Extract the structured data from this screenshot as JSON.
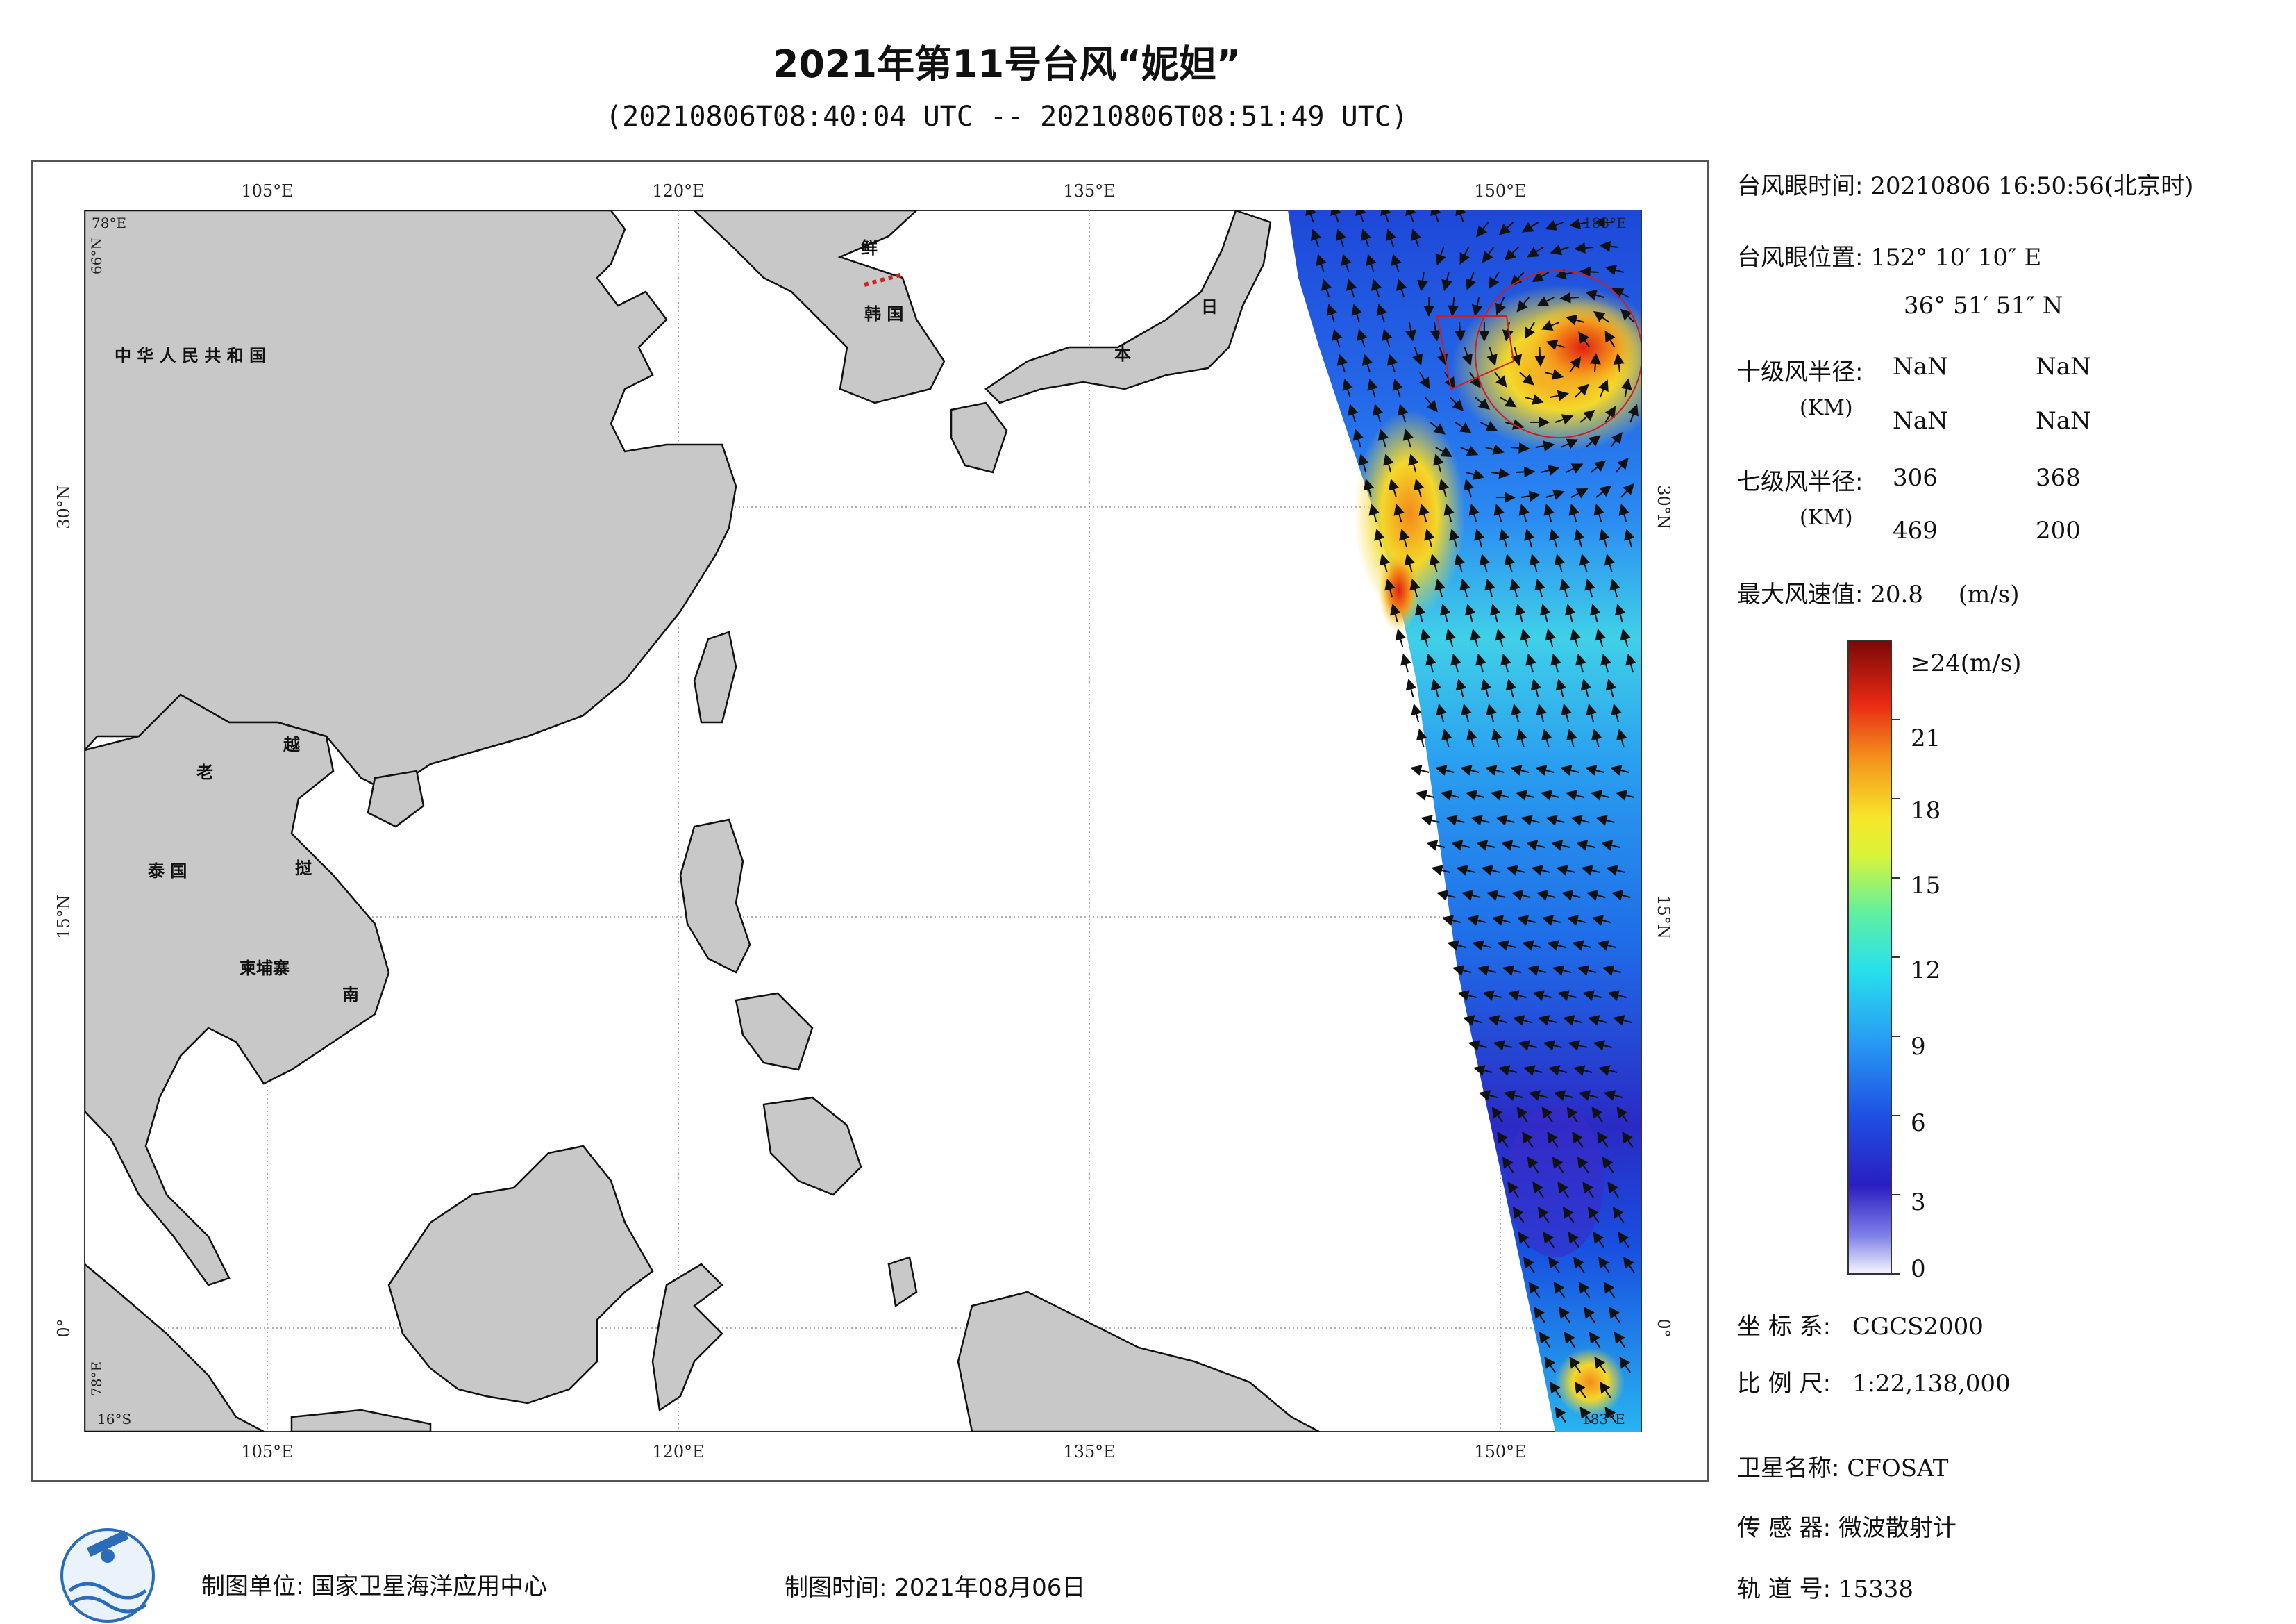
{
  "title": "2021年第11号台风“妮妲”",
  "subtitle": "(20210806T08:40:04 UTC -- 20210806T08:51:49 UTC)",
  "map": {
    "lon_ticks": [
      "105°E",
      "120°E",
      "135°E",
      "150°E"
    ],
    "lat_ticks": [
      "30°N",
      "15°N",
      "0°"
    ],
    "corner_labels": {
      "top_left_lat": "78°E",
      "top_left_lon": "66°N",
      "top_right": "183°E",
      "bottom_left": "16°S",
      "bottom_left_lon": "78°E",
      "bottom_right": "183°E"
    },
    "country_labels": [
      "中 华 人 民 共 和 国",
      "鲜",
      "韩 国",
      "日",
      "本",
      "老",
      "越",
      "泰 国",
      "挝",
      "柬埔寨",
      "南"
    ],
    "colors": {
      "land": "#c8c8c8",
      "ocean": "#ffffff",
      "circle_10": "#cc2020",
      "circle_7": "#cc2020"
    }
  },
  "info": {
    "eye_time_label": "台风眼时间:",
    "eye_time_value": "20210806 16:50:56(北京时)",
    "eye_pos_label": "台风眼位置:",
    "eye_pos_lon": "152° 10′ 10″ E",
    "eye_pos_lat": "36° 51′ 51″ N",
    "r10_label": "十级风半径:",
    "r10_unit": "(KM)",
    "r10_values": [
      "NaN",
      "NaN",
      "NaN",
      "NaN"
    ],
    "r7_label": "七级风半径:",
    "r7_unit": "(KM)",
    "r7_values": [
      "306",
      "368",
      "469",
      "200"
    ],
    "max_wind_label": "最大风速值:",
    "max_wind_value": "20.8",
    "max_wind_unit": "(m/s)"
  },
  "colorbar": {
    "ticks": [
      "≥24(m/s)",
      "21",
      "18",
      "15",
      "12",
      "9",
      "6",
      "3",
      "0"
    ],
    "colors": [
      "#f2f2ff",
      "#3a2cc8",
      "#1f4fe0",
      "#2e9af4",
      "#28d8f0",
      "#7ef28a",
      "#f4f02a",
      "#f49a1c",
      "#e02414",
      "#8a0a0a"
    ]
  },
  "meta": {
    "crs_label": "坐 标 系:",
    "crs_value": "CGCS2000",
    "scale_label": "比 例 尺:",
    "scale_value": "1:22,138,000",
    "sat_label": "卫星名称:",
    "sat_value": "CFOSAT",
    "sensor_label": "传 感 器:",
    "sensor_value": "微波散射计",
    "orbit_label": "轨 道 号:",
    "orbit_value": "15338",
    "maker_label": "制图单位:",
    "maker_value": "国家卫星海洋应用中心",
    "date_label": "制图时间:",
    "date_value": "2021年08月06日"
  }
}
